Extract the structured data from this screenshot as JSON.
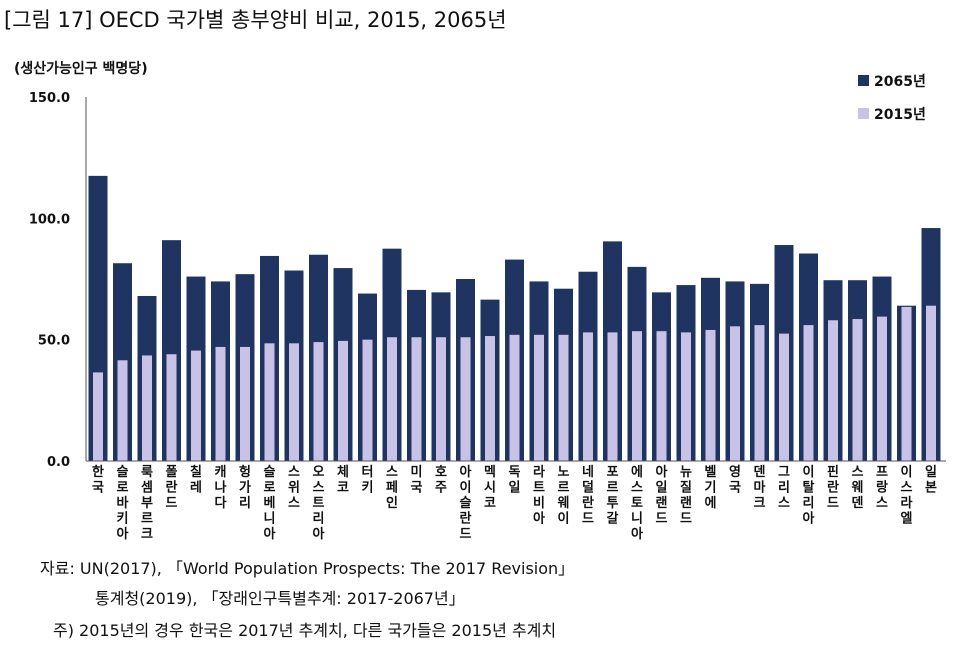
{
  "figure": {
    "title": "[그림 17] OECD 국가별 총부양비 비교, 2015, 2065년",
    "unit": "(생산가능인구 백명당)"
  },
  "colors": {
    "y2065": "#1f3461",
    "y2015": "#c8c2e6"
  },
  "chart_data": {
    "type": "bar",
    "title": "[그림 17] OECD 국가별 총부양비 비교, 2015, 2065년",
    "ylabel": "(생산가능인구 백명당)",
    "xlabel": "",
    "ylim": [
      0,
      150
    ],
    "yticks": [
      0,
      50,
      100,
      150
    ],
    "ytick_labels": [
      "0.0",
      "50.0",
      "100.0",
      "150.0"
    ],
    "legend_position": "top-right",
    "overlap": true,
    "categories": [
      "한국",
      "슬로바키아",
      "룩셈부르크",
      "폴란드",
      "칠레",
      "캐나다",
      "헝가리",
      "슬로베니아",
      "스위스",
      "오스트리아",
      "체코",
      "터키",
      "스페인",
      "미국",
      "호주",
      "아이슬란드",
      "멕시코",
      "독일",
      "라트비아",
      "노르웨이",
      "네덜란드",
      "포르투갈",
      "에스토니아",
      "아일랜드",
      "뉴질랜드",
      "벨기에",
      "영국",
      "덴마크",
      "그리스",
      "이탈리아",
      "핀란드",
      "스웨덴",
      "프랑스",
      "이스라엘",
      "일본"
    ],
    "series": [
      {
        "name": "2065년",
        "values": [
          117.5,
          81.5,
          68,
          91,
          76,
          74,
          77,
          84.5,
          78.5,
          85,
          79.5,
          69,
          87.5,
          70.5,
          69.5,
          75,
          66.5,
          83,
          74,
          71,
          78,
          90.5,
          80,
          69.5,
          72.5,
          75.5,
          74,
          73,
          89,
          85.5,
          74.5,
          74.5,
          76,
          64,
          96
        ]
      },
      {
        "name": "2015년",
        "values": [
          36.5,
          41.5,
          43.5,
          44,
          45.5,
          47,
          47,
          48.5,
          48.5,
          49,
          49.5,
          50,
          51,
          51,
          51,
          51,
          51.5,
          52,
          52,
          52,
          53,
          53,
          53.5,
          53.5,
          53,
          54,
          55.5,
          56,
          52.5,
          56,
          58,
          58.5,
          59.5,
          63.5,
          64
        ]
      }
    ]
  },
  "notes": {
    "source": "자료: UN(2017), 「World Population Prospects: The 2017 Revision」",
    "source2": "통계청(2019), 「장래인구특별추계: 2017-2067년」",
    "footnote": "주) 2015년의 경우 한국은 2017년 추계치, 다른 국가들은 2015년 추계치"
  }
}
